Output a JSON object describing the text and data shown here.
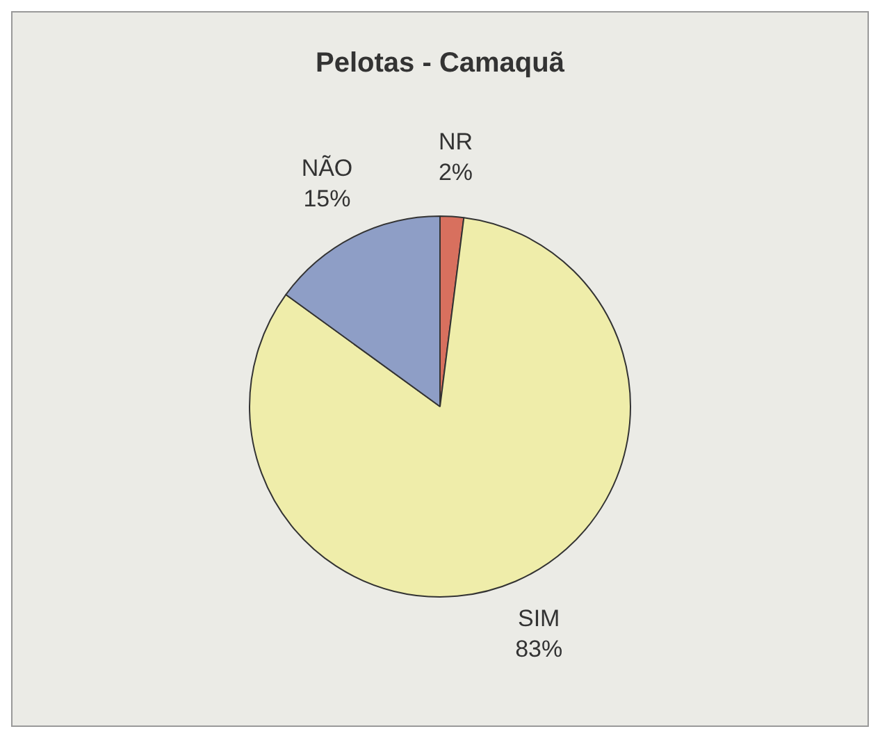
{
  "chart_data": {
    "type": "pie",
    "title": "Pelotas - Camaquã",
    "categories": [
      "NR",
      "SIM",
      "NÃO"
    ],
    "values": [
      2,
      83,
      15
    ],
    "colors": [
      "#d8705e",
      "#efedaa",
      "#8e9ec6"
    ],
    "value_labels": [
      "2%",
      "83%",
      "15%"
    ]
  }
}
